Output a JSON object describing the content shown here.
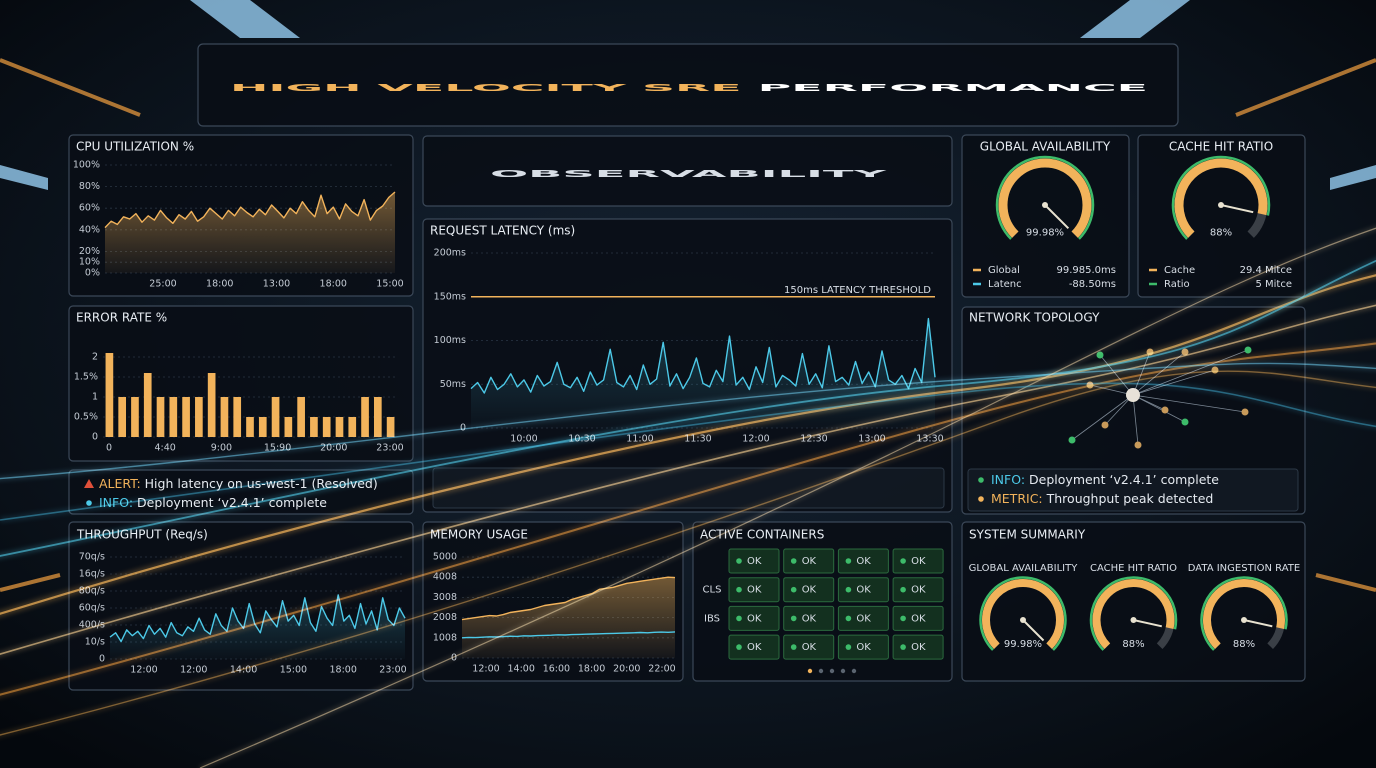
{
  "header": {
    "title_accent": "HIGH VELOCITY SRE",
    "title_rest": "PERFORMANCE",
    "subtitle": "OBSERVABILITY",
    "accent_color": "#f2b35b"
  },
  "cpu": {
    "type": "line",
    "title": "CPU UTILIZATION %",
    "color": "#f2b35b",
    "ylim": [
      0,
      100
    ],
    "yticks": [
      {
        "value": 0,
        "label": "0%"
      },
      {
        "value": 10,
        "label": "10%"
      },
      {
        "value": 20,
        "label": "20%"
      },
      {
        "value": 40,
        "label": "40%"
      },
      {
        "value": 60,
        "label": "60%"
      },
      {
        "value": 80,
        "label": "80%"
      },
      {
        "value": 100,
        "label": "100%"
      }
    ],
    "xtick_labels": [
      "25:00",
      "18:00",
      "13:00",
      "18:00",
      "15:00"
    ],
    "values": [
      42,
      48,
      45,
      52,
      50,
      55,
      47,
      53,
      49,
      58,
      51,
      46,
      54,
      50,
      57,
      48,
      52,
      60,
      55,
      50,
      58,
      53,
      61,
      56,
      52,
      59,
      54,
      63,
      57,
      51,
      60,
      55,
      66,
      58,
      52,
      72,
      55,
      61,
      50,
      64,
      57,
      53,
      68,
      49,
      58,
      62,
      70,
      75
    ]
  },
  "error_rate": {
    "type": "bar",
    "title": "ERROR RATE %",
    "color": "#f2b35b",
    "ylim": [
      0,
      2.5
    ],
    "yticks": [
      0,
      {
        "value": 0.5,
        "label": "0.5%"
      },
      1,
      {
        "value": 1.5,
        "label": "1.5%"
      },
      2
    ],
    "xtick_labels": [
      "0",
      "4:40",
      "9:00",
      "15:90",
      "20:00",
      "23:00"
    ],
    "values": [
      2.1,
      1,
      1,
      1.6,
      1,
      1,
      1,
      1,
      1.6,
      1,
      1,
      0.5,
      0.5,
      1,
      0.5,
      1,
      0.5,
      0.5,
      0.5,
      0.5,
      1,
      1,
      0.5
    ]
  },
  "alerts": [
    {
      "level": "ALERT:",
      "text": "High latency on us-west-1 (Resolved)",
      "color": "#f2b35b",
      "marker": "#e0503a"
    },
    {
      "level": "INFO:",
      "text": "Deployment ‘v2.4.1’ complete",
      "color": "#4cc9e8",
      "marker": "#4cc9e8"
    }
  ],
  "latency": {
    "type": "line",
    "title": "REQUEST LATENCY (ms)",
    "color": "#4cc9e8",
    "ylim": [
      0,
      200
    ],
    "yticks": [
      0,
      {
        "value": 50,
        "label": "50ms"
      },
      {
        "value": 100,
        "label": "100ms"
      },
      {
        "value": 150,
        "label": "150ms"
      },
      {
        "value": 200,
        "label": "200ms"
      }
    ],
    "threshold": {
      "value": 150,
      "label": "150ms LATENCY THRESHOLD",
      "color": "#f2b35b"
    },
    "xtick_labels": [
      "10:00",
      "10:30",
      "11:00",
      "11:30",
      "12:00",
      "12:30",
      "13:00",
      "13:30"
    ],
    "values": [
      45,
      52,
      40,
      58,
      44,
      50,
      62,
      47,
      55,
      41,
      60,
      48,
      53,
      75,
      50,
      46,
      58,
      42,
      64,
      49,
      55,
      90,
      52,
      47,
      60,
      44,
      72,
      50,
      56,
      98,
      48,
      62,
      45,
      58,
      80,
      51,
      47,
      66,
      53,
      105,
      49,
      58,
      44,
      70,
      52,
      92,
      47,
      60,
      55,
      48,
      85,
      50,
      62,
      46,
      94,
      53,
      58,
      49,
      76,
      51,
      64,
      47,
      88,
      55,
      50,
      60,
      45,
      68,
      52,
      125,
      58
    ]
  },
  "availability": {
    "type": "gauge",
    "title": "GLOBAL AVAILABILITY",
    "value": 99.98,
    "value_label": "99.98%",
    "range": [
      0,
      100
    ],
    "color": "#f2b35b",
    "legend": [
      {
        "name": "Global",
        "value": "99.985.0ms",
        "color": "#f2b35b"
      },
      {
        "name": "Latenc",
        "value": "-88.50ms",
        "color": "#4cc9e8"
      }
    ]
  },
  "cache": {
    "type": "gauge",
    "title": "CACHE HIT RATIO",
    "value": 88,
    "value_label": "88%",
    "range": [
      0,
      100
    ],
    "color": "#f2b35b",
    "legend": [
      {
        "name": "Cache",
        "value": "29.4 Mitce",
        "color": "#f2b35b"
      },
      {
        "name": "Ratio",
        "value": "5 Mitce",
        "color": "#3dbb6a"
      }
    ]
  },
  "network": {
    "title": "NETWORK TOPOLOGY",
    "log": [
      {
        "level": "INFO:",
        "text": "Deployment ‘v2.4.1’ complete",
        "color": "#4cc9e8",
        "marker": "#3dbb6a"
      },
      {
        "level": "METRIC:",
        "text": "Throughput peak detected",
        "color": "#f2b35b",
        "marker": "#f2b35b"
      }
    ]
  },
  "throughput": {
    "type": "line",
    "title": "THROUGHPUT (Req/s)",
    "color": "#4cc9e8",
    "ylim": [
      0,
      700
    ],
    "y_labels": [
      "0",
      "10/s",
      "400/s",
      "60q/s",
      "80q/s",
      "16q/s",
      "70q/s"
    ],
    "xtick_labels": [
      "12:00",
      "12:00",
      "14:00",
      "15:00",
      "18:00",
      "23:00"
    ],
    "values": [
      150,
      180,
      120,
      200,
      160,
      190,
      140,
      230,
      170,
      210,
      150,
      250,
      180,
      160,
      220,
      190,
      280,
      200,
      170,
      310,
      230,
      190,
      350,
      260,
      210,
      380,
      240,
      180,
      330,
      270,
      220,
      400,
      260,
      300,
      230,
      420,
      250,
      190,
      360,
      280,
      230,
      440,
      260,
      300,
      210,
      380,
      240,
      330,
      200,
      420,
      270,
      230,
      350,
      280
    ]
  },
  "memory": {
    "type": "line",
    "title": "MEMORY USAGE",
    "ylim": [
      0,
      5000
    ],
    "y_labels": [
      "0",
      "1008",
      "2008",
      "3008",
      "4008",
      "5000"
    ],
    "xtick_labels": [
      "12:00",
      "14:00",
      "16:00",
      "18:00",
      "20:00",
      "22:00"
    ],
    "series": [
      {
        "color": "#f2b35b",
        "values": [
          1900,
          1950,
          2000,
          2050,
          2100,
          2080,
          2150,
          2250,
          2300,
          2350,
          2400,
          2500,
          2600,
          2650,
          2700,
          2750,
          2900,
          3000,
          3100,
          3200,
          3400,
          3450,
          3500,
          3600,
          3700,
          3750,
          3800,
          3850,
          3900,
          3950,
          4000,
          3980
        ]
      },
      {
        "color": "#4cc9e8",
        "values": [
          1000,
          1020,
          1010,
          1030,
          1050,
          1040,
          1060,
          1080,
          1070,
          1100,
          1090,
          1110,
          1120,
          1130,
          1150,
          1140,
          1160,
          1170,
          1180,
          1190,
          1200,
          1210,
          1220,
          1230,
          1240,
          1250,
          1260,
          1250,
          1270,
          1280,
          1270,
          1290
        ]
      }
    ]
  },
  "containers": {
    "title": "ACTIVE CONTAINERS",
    "color": "#3dbb6a",
    "row_labels": [
      null,
      "CLS",
      "IBS",
      null
    ],
    "cells": [
      [
        "OK",
        "OK",
        "OK",
        "OK"
      ],
      [
        "OK",
        "OK",
        "OK",
        "OK"
      ],
      [
        "OK",
        "OK",
        "OK",
        "OK"
      ],
      [
        "OK",
        "OK",
        "OK",
        "OK"
      ]
    ]
  },
  "summary": {
    "title": "SYSTEM SUMMARIY",
    "gauges": [
      {
        "title": "GLOBAL AVAILABILITY",
        "value": 99.98,
        "value_label": "99.98%",
        "range": [
          0,
          100
        ],
        "color": "#f2b35b"
      },
      {
        "title": "CACHE HIT RATIO",
        "value": 88,
        "value_label": "88%",
        "range": [
          0,
          100
        ],
        "color": "#f2b35b"
      },
      {
        "title": "DATA INGESTION RATE",
        "value": 88,
        "value_label": "88%",
        "range": [
          0,
          100
        ],
        "color": "#f2b35b"
      }
    ]
  }
}
